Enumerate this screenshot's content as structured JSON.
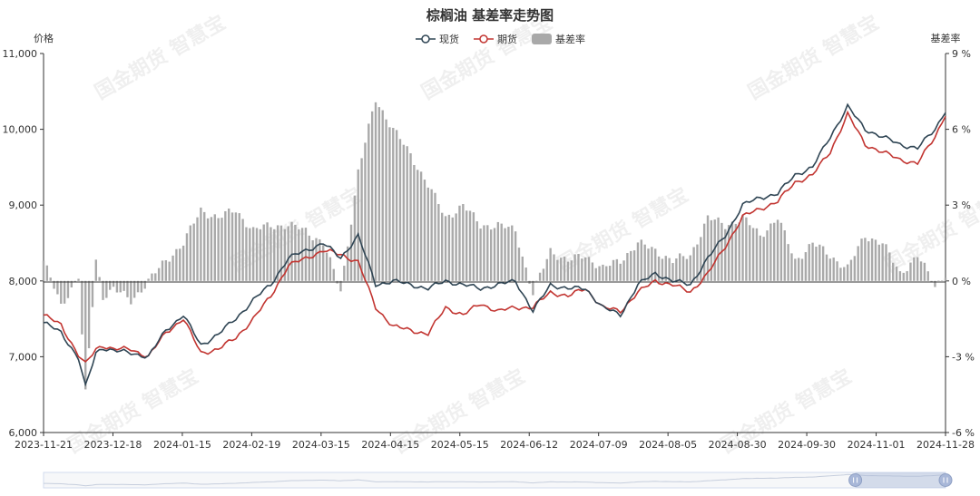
{
  "chart_data": {
    "type": "bar+line",
    "title": "棕榈油 基差率走势图",
    "left_axis": {
      "name": "价格",
      "range": [
        6000,
        11000
      ],
      "ticks": [
        "6,000",
        "7,000",
        "8,000",
        "9,000",
        "10,000",
        "11,000"
      ]
    },
    "right_axis": {
      "name": "基差率",
      "range": [
        -6,
        9
      ],
      "ticks": [
        "-6 %",
        "-3 %",
        "0 %",
        "3 %",
        "6 %",
        "9 %"
      ]
    },
    "x_ticks": [
      "2023-11-21",
      "2023-12-18",
      "2024-01-15",
      "2024-02-19",
      "2024-03-15",
      "2024-04-15",
      "2024-05-15",
      "2024-06-12",
      "2024-07-09",
      "2024-08-05",
      "2024-08-30",
      "2024-09-30",
      "2024-11-01",
      "2024-11-28"
    ],
    "legend": [
      {
        "name": "现货",
        "color": "#2f4554",
        "kind": "line"
      },
      {
        "name": "期货",
        "color": "#c23531",
        "kind": "line"
      },
      {
        "name": "基差率",
        "color": "#a9a9a9",
        "kind": "bar"
      }
    ],
    "spot_color": "#2f4554",
    "futures_color": "#c23531",
    "bar_color": "#a9a9a9",
    "series_keyframes": {
      "x_index": [
        0,
        5,
        10,
        12,
        15,
        17,
        20,
        25,
        30,
        35,
        40,
        45,
        50,
        55,
        60,
        65,
        70,
        75,
        80,
        85,
        90,
        95,
        100,
        105,
        110,
        115,
        120,
        125,
        130,
        135,
        140,
        145,
        150,
        155,
        160,
        165,
        170,
        175,
        180,
        185,
        190,
        195,
        200,
        205,
        210,
        215,
        220,
        225,
        230,
        235,
        240,
        245,
        250,
        255,
        258
      ],
      "spot": [
        7450,
        7320,
        6980,
        6600,
        7050,
        7120,
        7080,
        7050,
        7000,
        7350,
        7550,
        7150,
        7300,
        7500,
        7750,
        7950,
        8300,
        8400,
        8500,
        8300,
        8600,
        7950,
        8000,
        7950,
        7900,
        8000,
        7950,
        7900,
        7950,
        8000,
        7600,
        7950,
        7900,
        7900,
        7650,
        7550,
        7950,
        8100,
        8000,
        7950,
        8300,
        8600,
        9000,
        9100,
        9150,
        9400,
        9500,
        9900,
        10300,
        10000,
        9900,
        9800,
        9750,
        10000,
        10250
      ],
      "futures": [
        7550,
        7420,
        7020,
        6900,
        7100,
        7150,
        7100,
        7100,
        7000,
        7320,
        7500,
        7050,
        7100,
        7250,
        7500,
        7800,
        8200,
        8300,
        8400,
        8350,
        8250,
        7650,
        7400,
        7350,
        7300,
        7650,
        7550,
        7700,
        7600,
        7650,
        7650,
        7850,
        7800,
        7900,
        7650,
        7600,
        7850,
        8000,
        7950,
        7850,
        8100,
        8450,
        8850,
        8950,
        9050,
        9300,
        9400,
        9700,
        10200,
        9800,
        9700,
        9600,
        9550,
        9900,
        10200
      ],
      "basis_pct": [
        0.8,
        -1.0,
        0.2,
        -4.5,
        0.8,
        -0.6,
        -0.3,
        -0.8,
        0.0,
        0.8,
        1.5,
        2.8,
        2.5,
        2.8,
        2.0,
        2.2,
        2.2,
        2.0,
        1.5,
        -0.4,
        4.3,
        7.2,
        6.0,
        5.0,
        3.8,
        2.5,
        3.0,
        2.2,
        2.2,
        2.0,
        -0.5,
        1.2,
        0.8,
        1.0,
        0.5,
        0.8,
        1.5,
        1.2,
        0.8,
        1.0,
        2.5,
        2.2,
        2.5,
        1.8,
        2.5,
        0.8,
        1.5,
        1.0,
        0.5,
        1.8,
        1.5,
        0.3,
        1.0,
        -0.2,
        0.3
      ]
    },
    "axis_label_color": "#333333",
    "grid_line_color": "#dddddd",
    "dataZoom_range_pct": [
      90,
      100
    ]
  }
}
